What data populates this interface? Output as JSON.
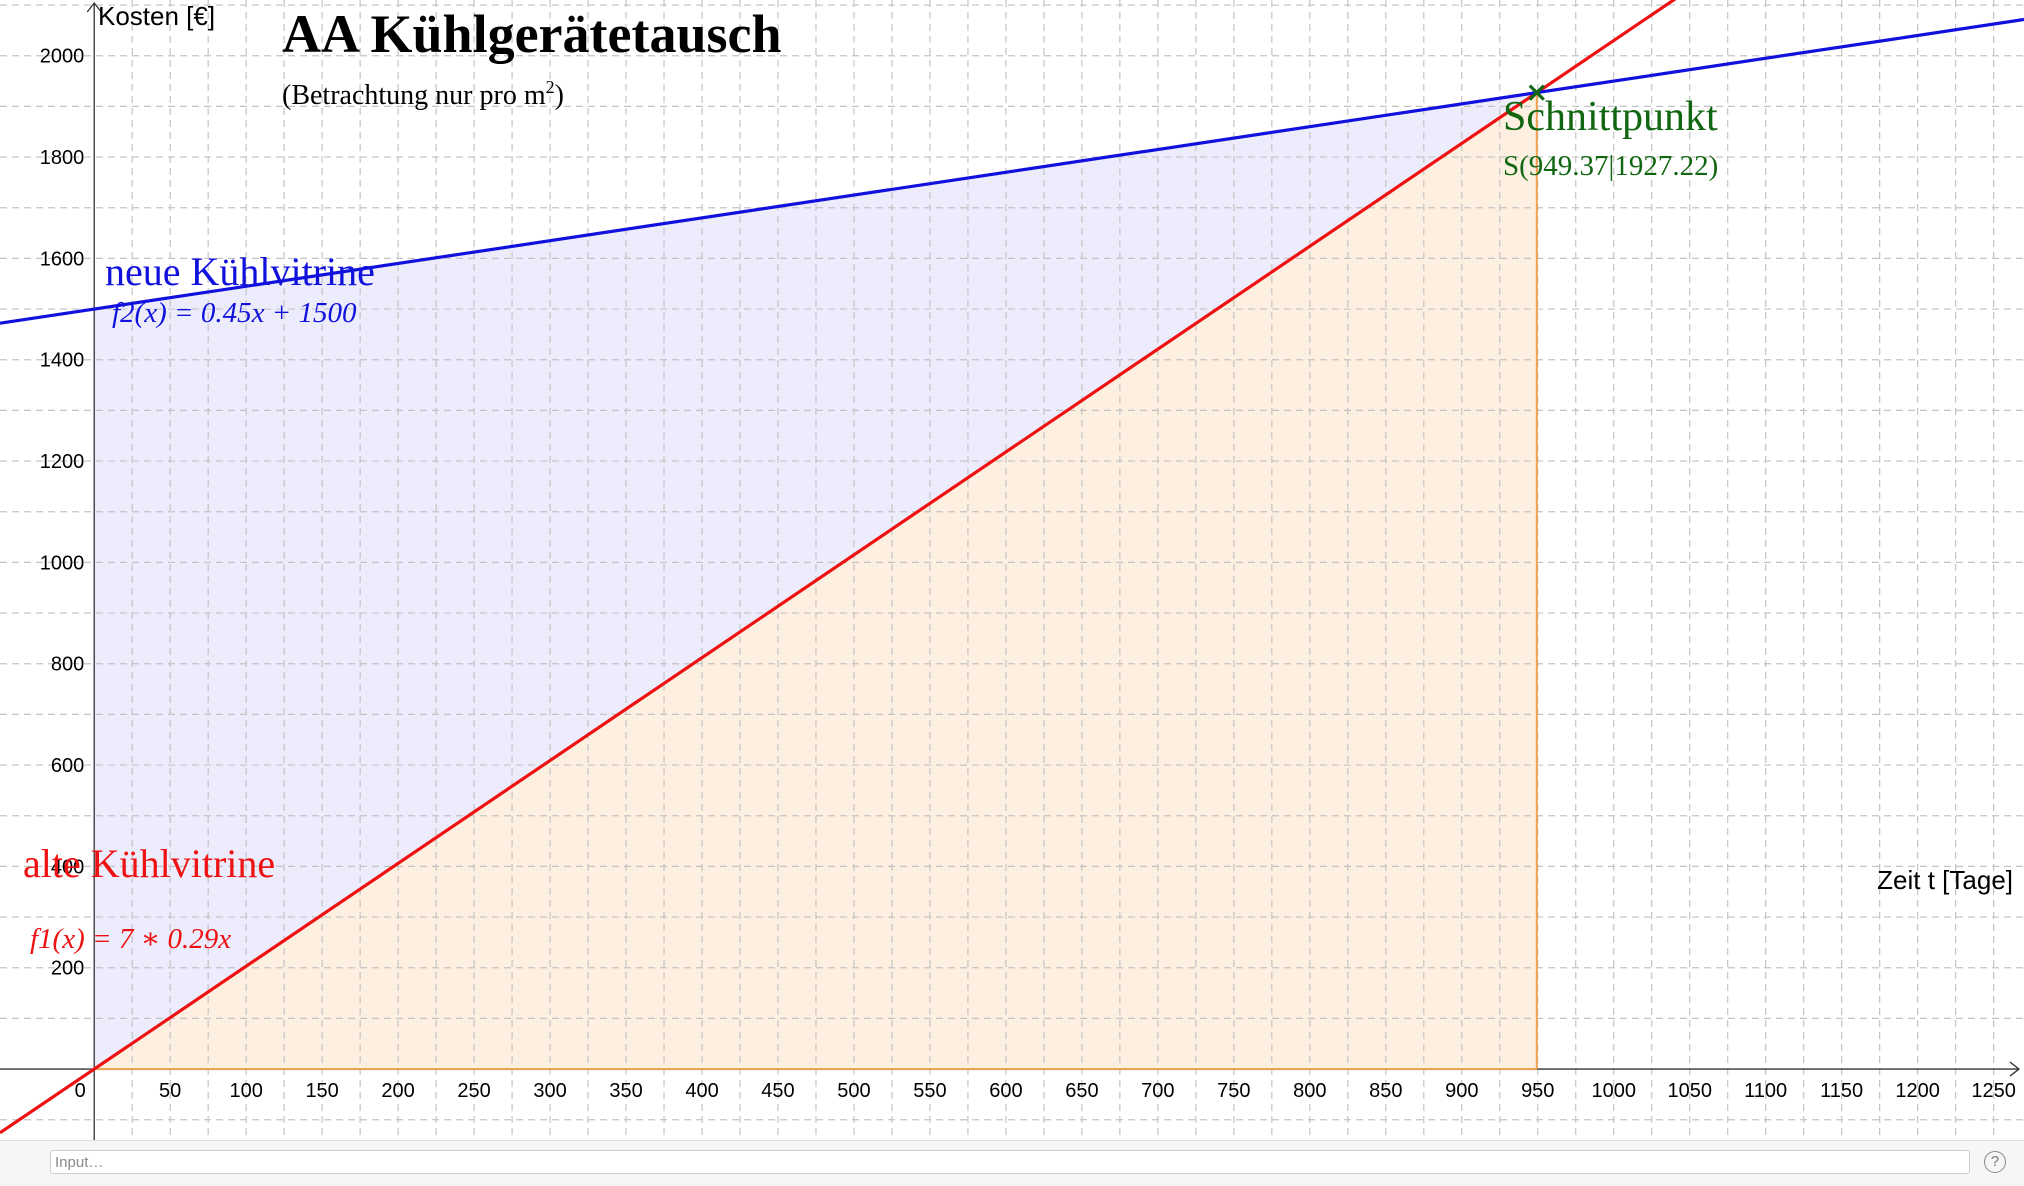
{
  "chart_data": {
    "type": "line",
    "title": "AA Kühlgerätetausch",
    "subtitle": "(Betrachtung nur pro m",
    "subtitle_sup": "2",
    "subtitle_end": ")",
    "xlabel": "Zeit t [Tage]",
    "ylabel": "Kosten [€]",
    "xlim": [
      -62,
      1270
    ],
    "ylim": [
      -140,
      2110
    ],
    "grid": true,
    "x_ticks": [
      0,
      50,
      100,
      150,
      200,
      250,
      300,
      350,
      400,
      450,
      500,
      550,
      600,
      650,
      700,
      750,
      800,
      850,
      900,
      950,
      1000,
      1050,
      1100,
      1150,
      1200,
      1250
    ],
    "y_ticks": [
      200,
      400,
      600,
      800,
      1000,
      1200,
      1400,
      1600,
      1800,
      2000
    ],
    "series": [
      {
        "name": "alte Kühlvitrine",
        "equation": "f1(x) = 7 ∗ 0.29x",
        "slope": 2.03,
        "intercept": 0,
        "color": "#ee1111",
        "fill_color": "#fdebd7"
      },
      {
        "name": "neue Kühlvitrine",
        "equation": "f2(x) = 0.45x + 1500",
        "slope": 0.45,
        "intercept": 1500,
        "color": "#1111dd",
        "fill_color": "#e6e6fb"
      }
    ],
    "intersection": {
      "label": "Schnittpunkt",
      "point_label": "S(949.37|1927.22)",
      "x": 949.37,
      "y": 1927.22,
      "color": "#116611"
    }
  },
  "input_bar": {
    "placeholder": "Input…",
    "help_icon": "?"
  }
}
